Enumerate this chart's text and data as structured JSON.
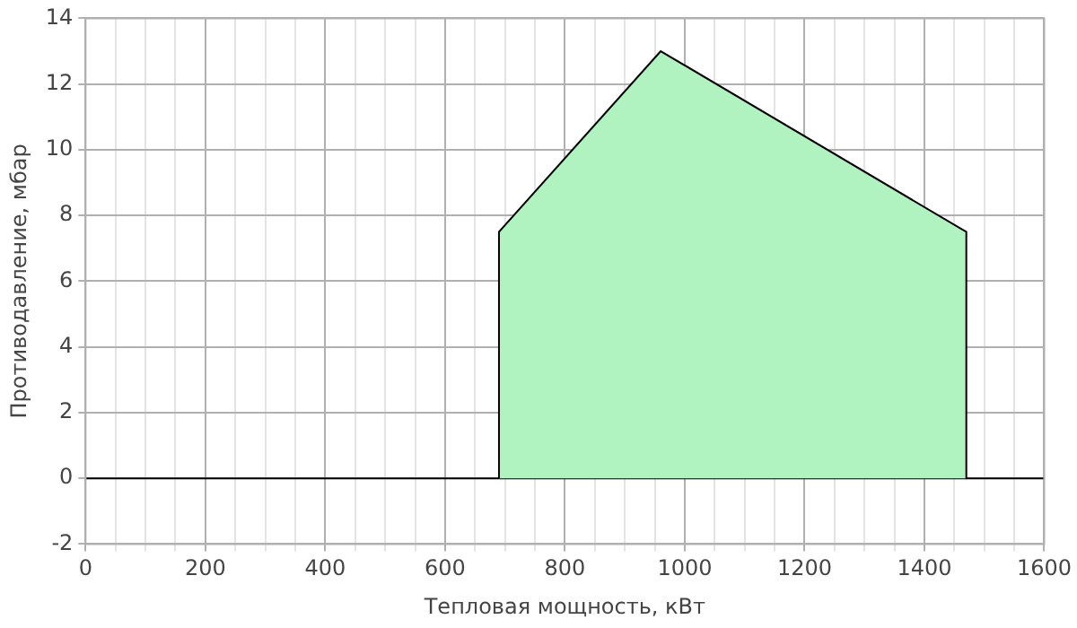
{
  "chart_data": {
    "type": "area",
    "xlabel": "Тепловая мощность, кВт",
    "ylabel": "Противодавление, мбар",
    "series": [
      {
        "color": "#b0f2c0",
        "x": [
          690,
          690,
          960,
          1470,
          1470
        ],
        "values": [
          0,
          7.5,
          13,
          7.5,
          0
        ]
      }
    ],
    "xlim": [
      0,
      1600
    ],
    "xticks": [
      0,
      {
        "value": 50,
        "label": null
      },
      200,
      {
        "value": 100,
        "label": null
      },
      {
        "value": 150,
        "label": null
      },
      {
        "value": 250,
        "label": null
      },
      {
        "value": 300,
        "label": null
      },
      {
        "value": 350,
        "label": null
      },
      400,
      {
        "value": 450,
        "label": null
      },
      {
        "value": 500,
        "label": null
      },
      {
        "value": 550,
        "label": null
      },
      600,
      {
        "value": 650,
        "label": null
      },
      {
        "value": 700,
        "label": null
      },
      {
        "value": 750,
        "label": null
      },
      800,
      {
        "value": 850,
        "label": null
      },
      {
        "value": 900,
        "label": null
      },
      {
        "value": 950,
        "label": null
      },
      1000,
      {
        "value": 1050,
        "label": null
      },
      {
        "value": 1100,
        "label": null
      },
      {
        "value": 1150,
        "label": null
      },
      1200,
      {
        "value": 1250,
        "label": null
      },
      {
        "value": 1300,
        "label": null
      },
      {
        "value": 1350,
        "label": null
      },
      1400,
      {
        "value": 1450,
        "label": null
      },
      {
        "value": 1500,
        "label": null
      },
      {
        "value": 1550,
        "label": null
      },
      1600
    ],
    "ylim": [
      -2,
      14
    ],
    "yticks": [
      -2,
      0,
      2,
      4,
      6,
      8,
      10,
      12,
      14
    ],
    "ref_lines": [
      {
        "axis": "y",
        "value": 0,
        "color": "#000000"
      }
    ],
    "grid": true,
    "legend": false
  }
}
